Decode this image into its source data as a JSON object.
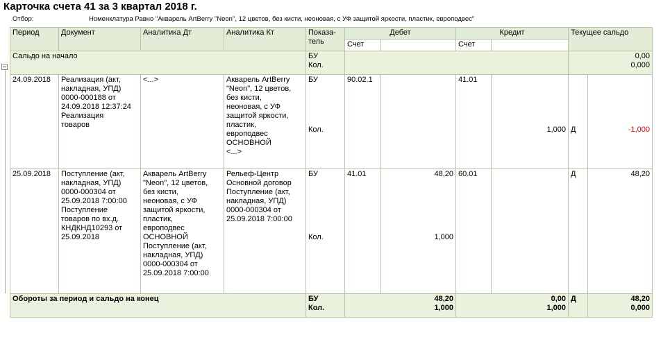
{
  "title": "Карточка счета 41 за 3 квартал 2018 г.",
  "filter": {
    "label": "Отбор:",
    "text": "Номенклатура Равно \"Акварель ArtBerry \"Neon\", 12 цветов, без кисти, неоновая, с УФ защитой яркости, пластик, европодвес\""
  },
  "headers": {
    "period": "Период",
    "document": "Документ",
    "analytics_dt": "Аналитика Дт",
    "analytics_kt": "Аналитика Кт",
    "indicator": "Показа-\nтель",
    "debit": "Дебет",
    "credit": "Кредит",
    "balance": "Текущее сальдо",
    "account": "Счет"
  },
  "opening": {
    "label": "Сальдо на начало",
    "ind_bu": "БУ",
    "ind_qty": "Кол.",
    "balance_bu": "0,00",
    "balance_qty": "0,000"
  },
  "rows": [
    {
      "period": "24.09.2018",
      "document": "Реализация (акт,\nнакладная, УПД)\n0000-000188 от\n24.09.2018 12:37:24\nРеализация\nтоваров",
      "analytics_dt": "<...>",
      "analytics_kt": "Акварель ArtBerry\n\"Neon\", 12 цветов,\nбез кисти,\nнеоновая, с УФ\nзащитой яркости,\nпластик,\nевроподвес\nОСНОВНОЙ\n<...>",
      "ind_bu": "БУ",
      "ind_qty": "Кол.",
      "debit_account": "90.02.1",
      "debit_bu": "",
      "debit_qty": "",
      "credit_account": "41.01",
      "credit_bu": "",
      "credit_qty": "1,000",
      "balance_side_bu": "",
      "balance_side_qty": "Д",
      "balance_bu": "",
      "balance_qty": "-1,000"
    },
    {
      "period": "25.09.2018",
      "document": "Поступление (акт,\nнакладная, УПД)\n0000-000304 от\n25.09.2018 7:00:00\nПоступление\nтоваров по вх.д.\nКНДКНД10293 от\n25.09.2018",
      "analytics_dt": "Акварель ArtBerry\n\"Neon\", 12 цветов,\nбез кисти,\nнеоновая, с УФ\nзащитой яркости,\nпластик,\nевроподвес\nОСНОВНОЙ\nПоступление (акт,\nнакладная, УПД)\n0000-000304 от\n25.09.2018 7:00:00",
      "analytics_kt": "Рельеф-Центр\nОсновной договор\nПоступление (акт,\nнакладная, УПД)\n0000-000304 от\n25.09.2018 7:00:00",
      "ind_bu": "БУ",
      "ind_qty": "Кол.",
      "debit_account": "41.01",
      "debit_bu": "48,20",
      "debit_qty": "1,000",
      "credit_account": "60.01",
      "credit_bu": "",
      "credit_qty": "",
      "balance_side_bu": "Д",
      "balance_side_qty": "",
      "balance_bu": "48,20",
      "balance_qty": ""
    }
  ],
  "closing": {
    "label": "Обороты за период и сальдо на конец",
    "ind_bu": "БУ",
    "ind_qty": "Кол.",
    "debit_bu": "48,20",
    "debit_qty": "1,000",
    "credit_bu": "0,00",
    "credit_qty": "1,000",
    "balance_side": "Д",
    "balance_bu": "48,20",
    "balance_qty": "0,000"
  }
}
